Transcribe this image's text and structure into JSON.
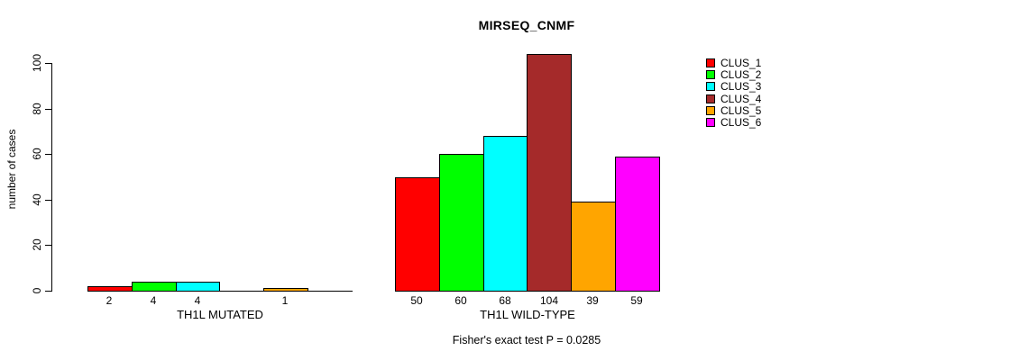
{
  "chart_data": {
    "type": "bar",
    "title": "MIRSEQ_CNMF",
    "ylabel": "number of cases",
    "annotation": "Fisher's exact test P = 0.0285",
    "ylim": [
      0,
      100
    ],
    "yticks": [
      0,
      20,
      40,
      60,
      80,
      100
    ],
    "grid": false,
    "legend_position": "right",
    "series": [
      {
        "name": "CLUS_1",
        "color": "#FF0000"
      },
      {
        "name": "CLUS_2",
        "color": "#00FF00"
      },
      {
        "name": "CLUS_3",
        "color": "#00FFFF"
      },
      {
        "name": "CLUS_4",
        "color": "#A52A2A"
      },
      {
        "name": "CLUS_5",
        "color": "#FFA500"
      },
      {
        "name": "CLUS_6",
        "color": "#FF00FF"
      }
    ],
    "groups": [
      {
        "label": "TH1L MUTATED",
        "values": [
          2,
          4,
          4,
          0,
          1,
          0
        ],
        "bar_labels": [
          "2",
          "4",
          "4",
          "",
          "1",
          ""
        ]
      },
      {
        "label": "TH1L WILD-TYPE",
        "values": [
          50,
          60,
          68,
          104,
          39,
          59
        ],
        "bar_labels": [
          "50",
          "60",
          "68",
          "104",
          "39",
          "59"
        ]
      }
    ]
  }
}
